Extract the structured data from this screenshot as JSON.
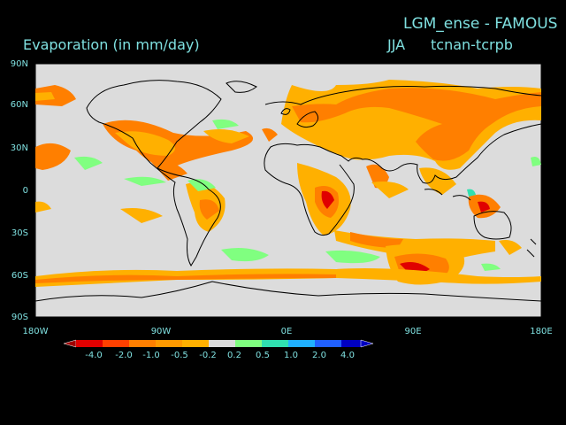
{
  "title": "LGM_ense - FAMOUS",
  "subtitle": "Evaporation (in mm/day)",
  "season": "JJA",
  "difference_label": "tcnan-tcrpb",
  "lat_labels": [
    "90N",
    "60N",
    "30N",
    "0",
    "30S",
    "60S",
    "90S"
  ],
  "lon_labels": [
    "180W",
    "90W",
    "0E",
    "90E",
    "180E"
  ],
  "colorbar": {
    "labels": [
      "-4.0",
      "-2.0",
      "-1.0",
      "-0.5",
      "-0.2",
      "0.2",
      "0.5",
      "1.0",
      "2.0",
      "4.0"
    ],
    "colors": [
      "#a00000",
      "#e00000",
      "#ff4000",
      "#ff7f00",
      "#ffb000",
      "#dcdcdc",
      "#80ff80",
      "#30e0b0",
      "#20b0ff",
      "#2060ff",
      "#0000c0"
    ]
  },
  "map_colors": {
    "background": "#dcdcdc",
    "coast": "#000000"
  }
}
